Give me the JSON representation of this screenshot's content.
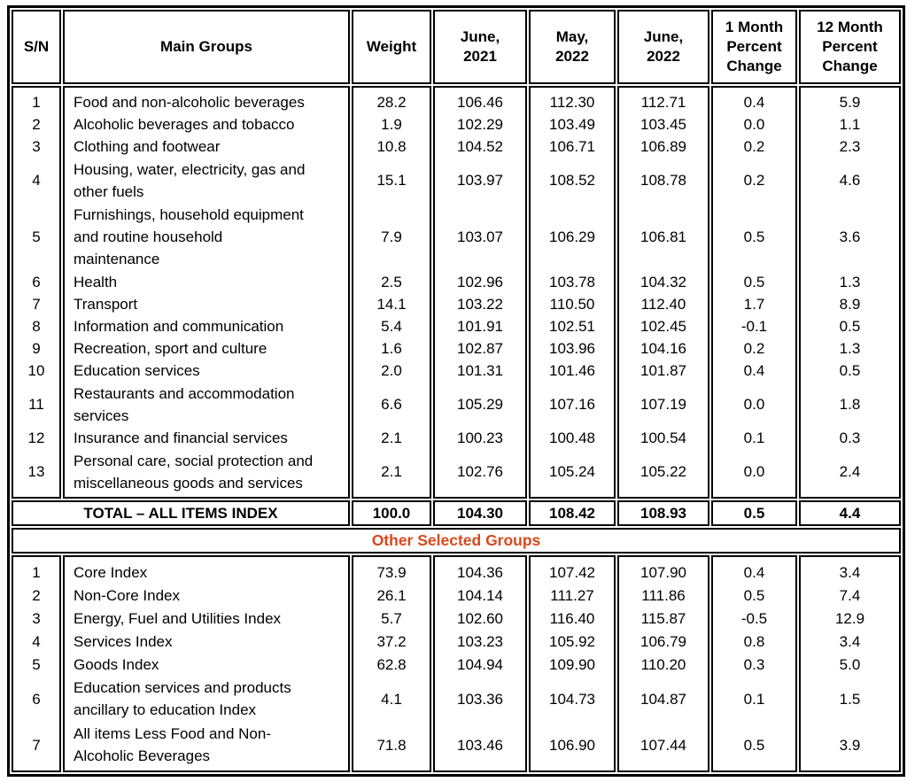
{
  "columns": [
    {
      "key": "sn",
      "label": "S/N"
    },
    {
      "key": "name",
      "label": "Main Groups"
    },
    {
      "key": "weight",
      "label": "Weight"
    },
    {
      "key": "jun_2021",
      "label": "June,\n2021"
    },
    {
      "key": "may_2022",
      "label": "May,\n2022"
    },
    {
      "key": "jun_2022",
      "label": "June,\n2022"
    },
    {
      "key": "pct_1m",
      "label": "1 Month\nPercent\nChange"
    },
    {
      "key": "pct_12m",
      "label": "12 Month\nPercent\nChange"
    }
  ],
  "main_groups": {
    "rows": [
      {
        "sn": "1",
        "name": "Food and non-alcoholic beverages",
        "weight": "28.2",
        "jun_2021": "106.46",
        "may_2022": "112.30",
        "jun_2022": "112.71",
        "pct_1m": "0.4",
        "pct_12m": "5.9"
      },
      {
        "sn": "2",
        "name": "Alcoholic beverages and tobacco",
        "weight": "1.9",
        "jun_2021": "102.29",
        "may_2022": "103.49",
        "jun_2022": "103.45",
        "pct_1m": "0.0",
        "pct_12m": "1.1"
      },
      {
        "sn": "3",
        "name": "Clothing and footwear",
        "weight": "10.8",
        "jun_2021": "104.52",
        "may_2022": "106.71",
        "jun_2022": "106.89",
        "pct_1m": "0.2",
        "pct_12m": "2.3"
      },
      {
        "sn": "4",
        "name": "Housing, water, electricity, gas and\nother fuels",
        "weight": "15.1",
        "jun_2021": "103.97",
        "may_2022": "108.52",
        "jun_2022": "108.78",
        "pct_1m": "0.2",
        "pct_12m": "4.6"
      },
      {
        "sn": "5",
        "name": "Furnishings, household equipment\nand routine household\nmaintenance",
        "weight": "7.9",
        "jun_2021": "103.07",
        "may_2022": "106.29",
        "jun_2022": "106.81",
        "pct_1m": "0.5",
        "pct_12m": "3.6"
      },
      {
        "sn": "6",
        "name": "Health",
        "weight": "2.5",
        "jun_2021": "102.96",
        "may_2022": "103.78",
        "jun_2022": "104.32",
        "pct_1m": "0.5",
        "pct_12m": "1.3"
      },
      {
        "sn": "7",
        "name": "Transport",
        "weight": "14.1",
        "jun_2021": "103.22",
        "may_2022": "110.50",
        "jun_2022": "112.40",
        "pct_1m": "1.7",
        "pct_12m": "8.9"
      },
      {
        "sn": "8",
        "name": "Information and communication",
        "weight": "5.4",
        "jun_2021": "101.91",
        "may_2022": "102.51",
        "jun_2022": "102.45",
        "pct_1m": "-0.1",
        "pct_12m": "0.5"
      },
      {
        "sn": "9",
        "name": "Recreation, sport and culture",
        "weight": "1.6",
        "jun_2021": "102.87",
        "may_2022": "103.96",
        "jun_2022": "104.16",
        "pct_1m": "0.2",
        "pct_12m": "1.3"
      },
      {
        "sn": "10",
        "name": "Education services",
        "weight": "2.0",
        "jun_2021": "101.31",
        "may_2022": "101.46",
        "jun_2022": "101.87",
        "pct_1m": "0.4",
        "pct_12m": "0.5"
      },
      {
        "sn": "11",
        "name": "Restaurants and accommodation\nservices",
        "weight": "6.6",
        "jun_2021": "105.29",
        "may_2022": "107.16",
        "jun_2022": "107.19",
        "pct_1m": "0.0",
        "pct_12m": "1.8"
      },
      {
        "sn": "12",
        "name": "Insurance and financial services",
        "weight": "2.1",
        "jun_2021": "100.23",
        "may_2022": "100.48",
        "jun_2022": "100.54",
        "pct_1m": "0.1",
        "pct_12m": "0.3"
      },
      {
        "sn": "13",
        "name": "Personal care, social protection and\nmiscellaneous goods and services",
        "weight": "2.1",
        "jun_2021": "102.76",
        "may_2022": "105.24",
        "jun_2022": "105.22",
        "pct_1m": "0.0",
        "pct_12m": "2.4"
      }
    ],
    "total": {
      "label": "TOTAL – ALL ITEMS INDEX",
      "weight": "100.0",
      "jun_2021": "104.30",
      "may_2022": "108.42",
      "jun_2022": "108.93",
      "pct_1m": "0.5",
      "pct_12m": "4.4"
    }
  },
  "other_groups": {
    "title": "Other Selected Groups",
    "title_color": "#d9481c",
    "rows": [
      {
        "sn": "1",
        "name": "Core Index",
        "weight": "73.9",
        "jun_2021": "104.36",
        "may_2022": "107.42",
        "jun_2022": "107.90",
        "pct_1m": "0.4",
        "pct_12m": "3.4"
      },
      {
        "sn": "2",
        "name": "Non-Core Index",
        "weight": "26.1",
        "jun_2021": "104.14",
        "may_2022": "111.27",
        "jun_2022": "111.86",
        "pct_1m": "0.5",
        "pct_12m": "7.4"
      },
      {
        "sn": "3",
        "name": "Energy, Fuel and Utilities Index",
        "weight": "5.7",
        "jun_2021": "102.60",
        "may_2022": "116.40",
        "jun_2022": "115.87",
        "pct_1m": "-0.5",
        "pct_12m": "12.9"
      },
      {
        "sn": "4",
        "name": "Services Index",
        "weight": "37.2",
        "jun_2021": "103.23",
        "may_2022": "105.92",
        "jun_2022": "106.79",
        "pct_1m": "0.8",
        "pct_12m": "3.4"
      },
      {
        "sn": "5",
        "name": "Goods Index",
        "weight": "62.8",
        "jun_2021": "104.94",
        "may_2022": "109.90",
        "jun_2022": "110.20",
        "pct_1m": "0.3",
        "pct_12m": "5.0"
      },
      {
        "sn": "6",
        "name": "Education services and products\nancillary to education Index",
        "weight": "4.1",
        "jun_2021": "103.36",
        "may_2022": "104.73",
        "jun_2022": "104.87",
        "pct_1m": "0.1",
        "pct_12m": "1.5"
      },
      {
        "sn": "7",
        "name": "All items Less Food and Non-\nAlcoholic Beverages",
        "weight": "71.8",
        "jun_2021": "103.46",
        "may_2022": "106.90",
        "jun_2022": "107.44",
        "pct_1m": "0.5",
        "pct_12m": "3.9"
      }
    ]
  }
}
